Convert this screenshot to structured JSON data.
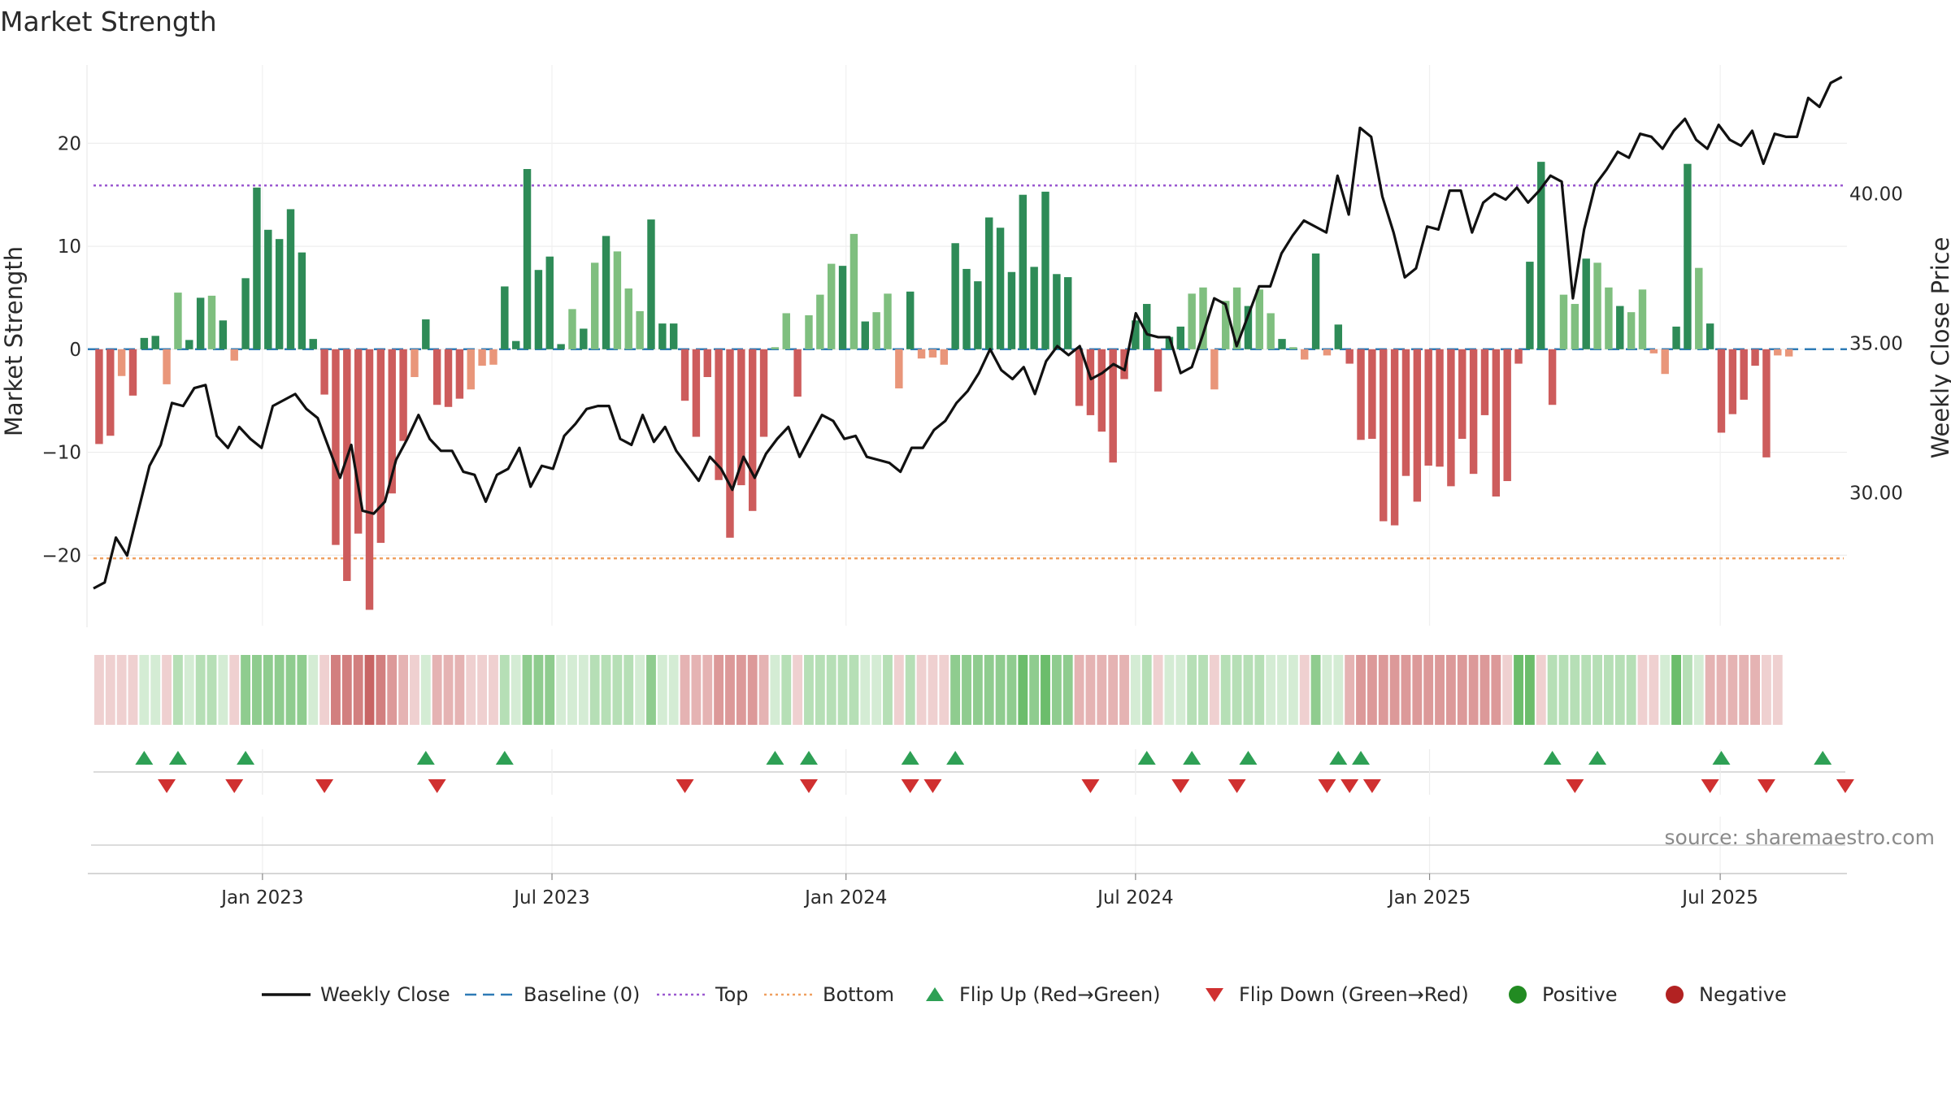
{
  "chart_data": {
    "type": "bar",
    "title": "Market Strength",
    "ylabel": "Market Strength",
    "y2label": "Weekly Close Price",
    "ylim": [
      -27,
      27.6
    ],
    "y2lim": [
      25.5,
      44.3
    ],
    "yticks": [
      20,
      10,
      0,
      -10,
      -20
    ],
    "y2ticks": [
      "40.00",
      "35.00",
      "30.00"
    ],
    "y2tick_values": [
      40,
      35,
      30
    ],
    "top_line": 15.9,
    "bottom_line": -20.3,
    "x_start_week": 0,
    "x_end_week": 155,
    "xticks": [
      {
        "label": "Jan 2023",
        "week": 15
      },
      {
        "label": "Jul 2023",
        "week": 40.7
      },
      {
        "label": "Jan 2024",
        "week": 66.8
      },
      {
        "label": "Jul 2024",
        "week": 92.5
      },
      {
        "label": "Jan 2025",
        "week": 118.6
      },
      {
        "label": "Jul 2025",
        "week": 144.4
      }
    ],
    "strength": [
      -9.2,
      -8.4,
      -2.6,
      -4.5,
      1.1,
      1.3,
      -3.4,
      5.5,
      0.9,
      5.0,
      5.2,
      2.8,
      -1.1,
      6.9,
      15.7,
      11.6,
      10.7,
      13.6,
      9.4,
      1.0,
      -4.4,
      -19.0,
      -22.5,
      -17.9,
      -25.3,
      -18.8,
      -14.0,
      -8.9,
      -2.7,
      2.9,
      -5.4,
      -5.6,
      -4.8,
      -3.9,
      -1.6,
      -1.5,
      6.1,
      0.8,
      17.5,
      7.7,
      9.0,
      0.5,
      3.9,
      2.0,
      8.4,
      11.0,
      9.5,
      5.9,
      3.7,
      12.6,
      2.5,
      2.5,
      -5.0,
      -8.5,
      -2.7,
      -12.7,
      -18.3,
      -13.2,
      -15.7,
      -8.5,
      0.2,
      3.5,
      -4.6,
      3.3,
      5.3,
      8.3,
      8.1,
      11.2,
      2.7,
      3.6,
      5.4,
      -3.8,
      5.6,
      -0.9,
      -0.8,
      -1.5,
      10.3,
      7.8,
      6.6,
      12.8,
      11.8,
      7.5,
      15.0,
      8.0,
      15.3,
      7.3,
      7.0,
      -5.5,
      -6.4,
      -8.0,
      -11.0,
      -2.9,
      2.8,
      4.4,
      -4.1,
      1.2,
      2.2,
      5.4,
      6.0,
      -3.9,
      4.7,
      6.0,
      4.2,
      5.8,
      3.5,
      1.0,
      0.2,
      -1.0,
      9.3,
      -0.6,
      2.4,
      -1.4,
      -8.8,
      -8.7,
      -16.7,
      -17.1,
      -12.3,
      -14.8,
      -11.3,
      -11.4,
      -13.3,
      -8.7,
      -12.1,
      -6.4,
      -14.3,
      -12.8,
      -1.4,
      8.5,
      18.2,
      -5.4,
      5.3,
      4.4,
      8.8,
      8.4,
      6.0,
      4.2,
      3.6,
      5.8,
      -0.4,
      -2.4,
      2.2,
      18.0,
      7.9,
      2.5,
      -8.1,
      -6.3,
      -4.9,
      -1.6,
      -10.5,
      -0.6,
      -0.7
    ],
    "weekly_close": [
      26.8,
      27.0,
      28.5,
      27.9,
      29.4,
      30.9,
      31.6,
      33.0,
      32.9,
      33.5,
      33.6,
      31.9,
      31.5,
      32.2,
      31.8,
      31.5,
      32.9,
      33.1,
      33.3,
      32.8,
      32.5,
      31.5,
      30.5,
      31.6,
      29.4,
      29.3,
      29.7,
      31.1,
      31.8,
      32.6,
      31.8,
      31.4,
      31.4,
      30.7,
      30.6,
      29.7,
      30.6,
      30.8,
      31.5,
      30.2,
      30.9,
      30.8,
      31.9,
      32.3,
      32.8,
      32.9,
      32.9,
      31.8,
      31.6,
      32.6,
      31.7,
      32.2,
      31.4,
      30.9,
      30.4,
      31.2,
      30.8,
      30.1,
      31.2,
      30.5,
      31.3,
      31.8,
      32.2,
      31.2,
      31.9,
      32.6,
      32.4,
      31.8,
      31.9,
      31.2,
      31.1,
      31.0,
      30.7,
      31.5,
      31.5,
      32.1,
      32.4,
      33.0,
      33.4,
      34.0,
      34.8,
      34.1,
      33.8,
      34.2,
      33.3,
      34.4,
      34.9,
      34.6,
      34.9,
      33.8,
      34.0,
      34.3,
      34.1,
      36.0,
      35.3,
      35.2,
      35.2,
      34.0,
      34.2,
      35.3,
      36.5,
      36.3,
      34.9,
      35.9,
      36.9,
      36.9,
      38.0,
      38.6,
      39.1,
      38.9,
      38.7,
      40.6,
      39.3,
      42.2,
      41.9,
      39.9,
      38.7,
      37.2,
      37.5,
      38.9,
      38.8,
      40.1,
      40.1,
      38.7,
      39.7,
      40.0,
      39.8,
      40.2,
      39.7,
      40.1,
      40.6,
      40.4,
      36.5,
      38.8,
      40.3,
      40.8,
      41.4,
      41.2,
      42.0,
      41.9,
      41.5,
      42.1,
      42.5,
      41.8,
      41.5,
      42.3,
      41.8,
      41.6,
      42.1,
      41.0,
      42.0,
      41.9,
      41.9,
      43.2,
      42.9,
      43.7,
      43.9
    ],
    "heat_levels": [
      -1,
      -1,
      -1,
      -1,
      1,
      1,
      -1,
      2,
      1,
      2,
      2,
      1,
      -1,
      3,
      3,
      3,
      3,
      3,
      3,
      1,
      -1,
      -4,
      -4,
      -4,
      -5,
      -4,
      -3,
      -2,
      -1,
      1,
      -2,
      -2,
      -2,
      -1,
      -1,
      -1,
      2,
      1,
      3,
      3,
      3,
      1,
      1,
      1,
      2,
      2,
      2,
      2,
      1,
      3,
      1,
      1,
      -2,
      -2,
      -2,
      -3,
      -3,
      -3,
      -3,
      -2,
      1,
      2,
      -1,
      2,
      2,
      2,
      2,
      2,
      1,
      1,
      2,
      -1,
      2,
      -1,
      -1,
      -1,
      3,
      3,
      3,
      3,
      3,
      3,
      4,
      3,
      4,
      3,
      3,
      -2,
      -2,
      -2,
      -2,
      -2,
      1,
      2,
      -1,
      1,
      1,
      2,
      2,
      -1,
      2,
      2,
      2,
      2,
      1,
      1,
      1,
      -1,
      3,
      1,
      1,
      -2,
      -3,
      -3,
      -3,
      -3,
      -3,
      -3,
      -3,
      -3,
      -3,
      -3,
      -3,
      -3,
      -3,
      -1,
      4,
      4,
      -1,
      2,
      2,
      2,
      2,
      2,
      2,
      2,
      2,
      -1,
      -1,
      1,
      4,
      2,
      1,
      -2,
      -2,
      -2,
      -2,
      -2,
      -1,
      -1
    ],
    "flip_up_weeks": [
      4,
      7,
      13,
      29,
      36,
      60,
      63,
      72,
      76,
      93,
      97,
      102,
      110,
      112,
      129,
      133,
      144,
      153
    ],
    "flip_down_weeks": [
      6,
      12,
      20,
      30,
      52,
      63,
      72,
      74,
      88,
      96,
      101,
      109,
      111,
      113,
      131,
      143,
      148,
      155
    ],
    "source": "source: sharemaestro.com",
    "legend": [
      {
        "label": "Weekly Close",
        "kind": "line",
        "color": "#111111"
      },
      {
        "label": "Baseline (0)",
        "kind": "dash",
        "color": "#2e7bb6"
      },
      {
        "label": "Top",
        "kind": "dot",
        "color": "#9b59d0"
      },
      {
        "label": "Bottom",
        "kind": "dot",
        "color": "#f0a060"
      },
      {
        "label": "Flip Up (Red→Green)",
        "kind": "tri-up",
        "color": "#2ea055"
      },
      {
        "label": "Flip Down (Green→Red)",
        "kind": "tri-down",
        "color": "#d03030"
      },
      {
        "label": "Positive",
        "kind": "circle",
        "color": "#228b22"
      },
      {
        "label": "Negative",
        "kind": "circle",
        "color": "#b22222"
      }
    ],
    "colors": {
      "pos_strong": "#2e8b57",
      "pos_light": "#7fbf7f",
      "neg_strong": "#cd5c5c",
      "neg_light": "#e9967a",
      "heat_pos": [
        "#d4ecd4",
        "#b6dfb6",
        "#8fcc8f",
        "#6cbd6c"
      ],
      "heat_neg": [
        "#efd0d0",
        "#e5b3b3",
        "#dc9999",
        "#d27f7f",
        "#c86464"
      ]
    }
  }
}
